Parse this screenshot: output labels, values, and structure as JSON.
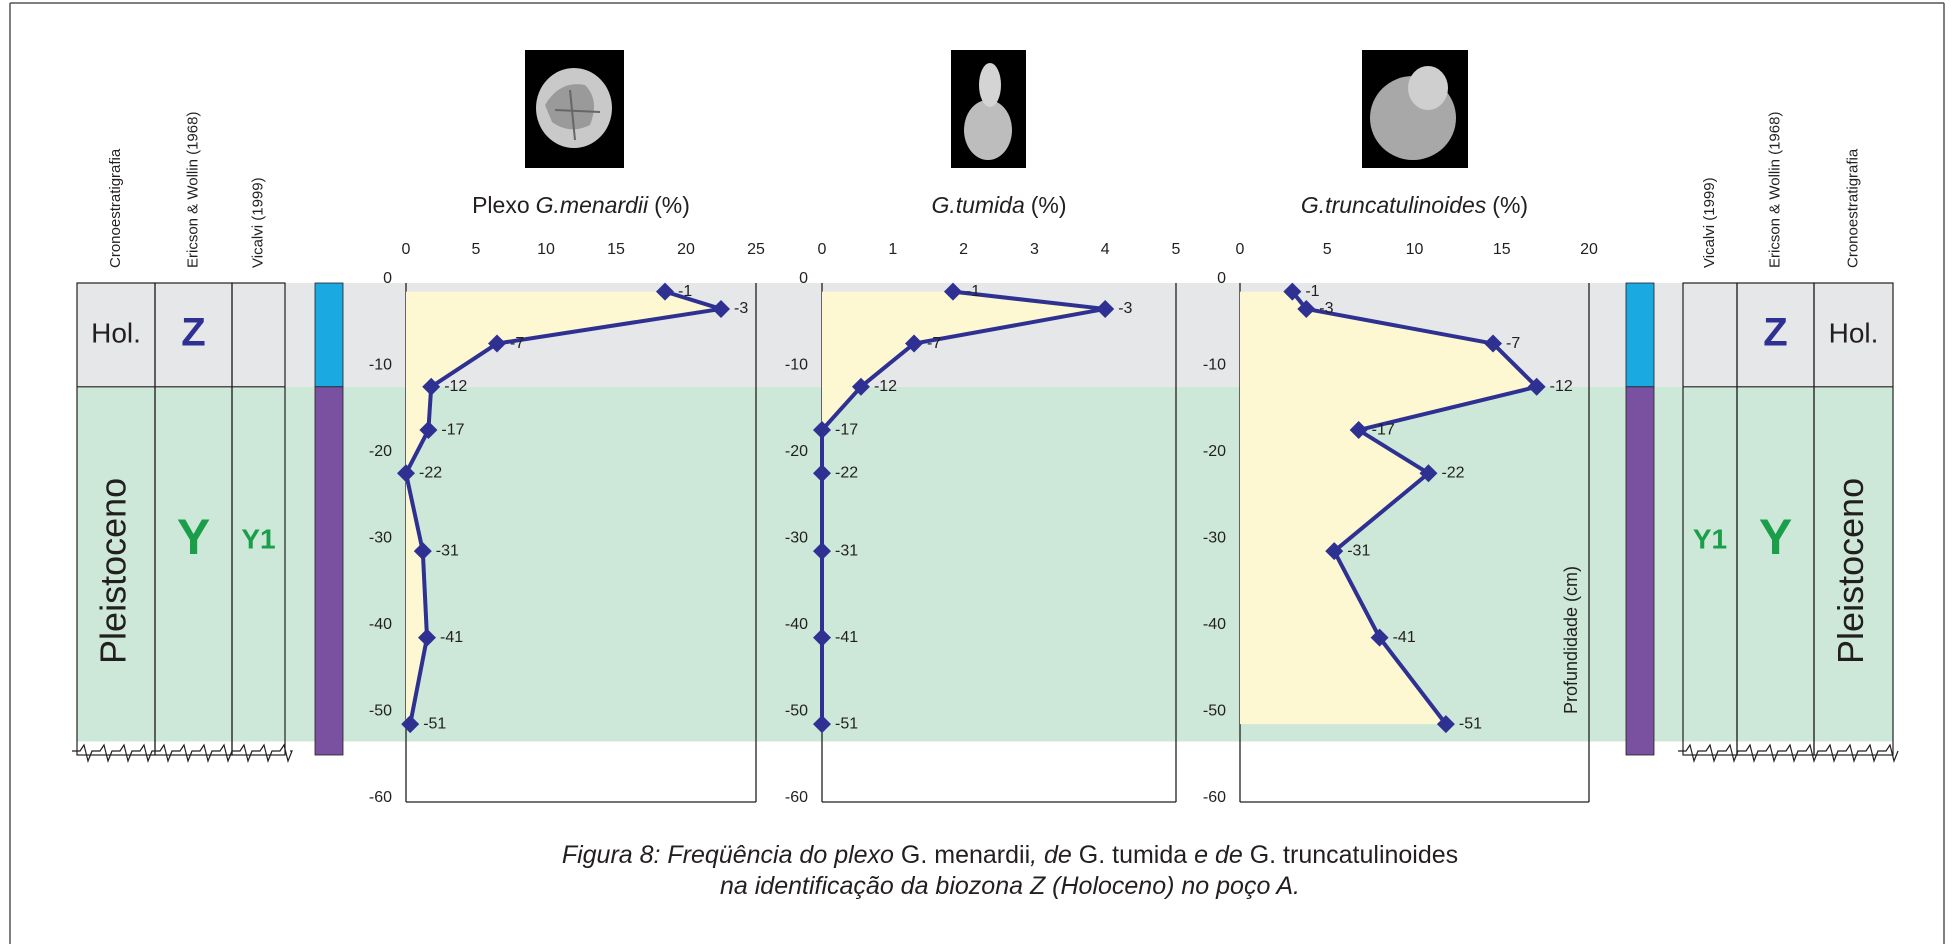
{
  "columns": {
    "chronostratigraphy": "Cronoestratigrafia",
    "ericson": "Ericson & Wollin (1968)",
    "vicalvi": "Vicalvi (1999)"
  },
  "zones": [
    {
      "epoch": "Hol.",
      "biozone": "Z",
      "top": 0,
      "bottom": -12,
      "color": "#e6e7e8",
      "bar_color": "#1ba9e1",
      "biozone_color": "#2e3192"
    },
    {
      "epoch": "Pleistoceno",
      "biozone": "Y",
      "subzone": "Y1",
      "top": -12,
      "bottom": -53,
      "color": "#cde8d8",
      "bar_color": "#7a51a0",
      "biozone_color": "#1a9e4a"
    }
  ],
  "chart_data": [
    {
      "type": "line",
      "title": {
        "prefix": "Plexo",
        "species": "G.menardii",
        "unit": "(%)"
      },
      "x": [
        18.5,
        22.5,
        6.5,
        1.8,
        1.6,
        0,
        1.2,
        1.5,
        0.3
      ],
      "values": [
        -1,
        -3,
        -7,
        -12,
        -17,
        -22,
        -31,
        -41,
        -51
      ],
      "color": "#2e3192",
      "fill": "#fdf8d2",
      "xlim": [
        0,
        25
      ],
      "xticks": [
        0,
        5,
        10,
        15,
        20,
        25
      ],
      "ylim": [
        -60,
        0
      ],
      "yticks": [
        0,
        -10,
        -20,
        -30,
        -40,
        -50,
        -60
      ]
    },
    {
      "type": "line",
      "title": {
        "species": "G.tumida",
        "unit": "(%)"
      },
      "x": [
        1.85,
        4.0,
        1.3,
        0.55,
        0,
        0,
        0,
        0,
        0
      ],
      "values": [
        -1,
        -3,
        -7,
        -12,
        -17,
        -22,
        -31,
        -41,
        -51
      ],
      "color": "#2e3192",
      "fill": "#fdf8d2",
      "xlim": [
        0,
        5
      ],
      "xticks": [
        0,
        1,
        2,
        3,
        4,
        5
      ],
      "ylim": [
        -60,
        0
      ],
      "yticks": [
        0,
        -10,
        -20,
        -30,
        -40,
        -50,
        -60
      ]
    },
    {
      "type": "line",
      "title": {
        "species": "G.truncatulinoides",
        "unit": "(%)"
      },
      "ylabel": "Profundidade (cm)",
      "x": [
        3,
        3.8,
        14.5,
        17,
        6.8,
        10.8,
        5.4,
        8,
        11.8
      ],
      "values": [
        -1,
        -3,
        -7,
        -12,
        -17,
        -22,
        -31,
        -41,
        -51
      ],
      "color": "#2e3192",
      "fill": "#fdf8d2",
      "xlim": [
        0,
        20
      ],
      "xticks": [
        0,
        5,
        10,
        15,
        20
      ],
      "ylim": [
        -60,
        0
      ],
      "yticks": [
        0,
        -10,
        -20,
        -30,
        -40,
        -50,
        -60
      ]
    }
  ],
  "caption": {
    "lines": [
      [
        {
          "text": "Figura 8: Freqüência do plexo ",
          "italic": true
        },
        {
          "text": "G. menardii",
          "italic": false
        },
        {
          "text": ", de ",
          "italic": true
        },
        {
          "text": "G. tumida",
          "italic": false
        },
        {
          "text": " e de ",
          "italic": true
        },
        {
          "text": "G. truncatulinoides",
          "italic": false
        }
      ],
      [
        {
          "text": "na identificação da biozona Z (Holoceno) no poço A.",
          "italic": true
        }
      ]
    ]
  }
}
